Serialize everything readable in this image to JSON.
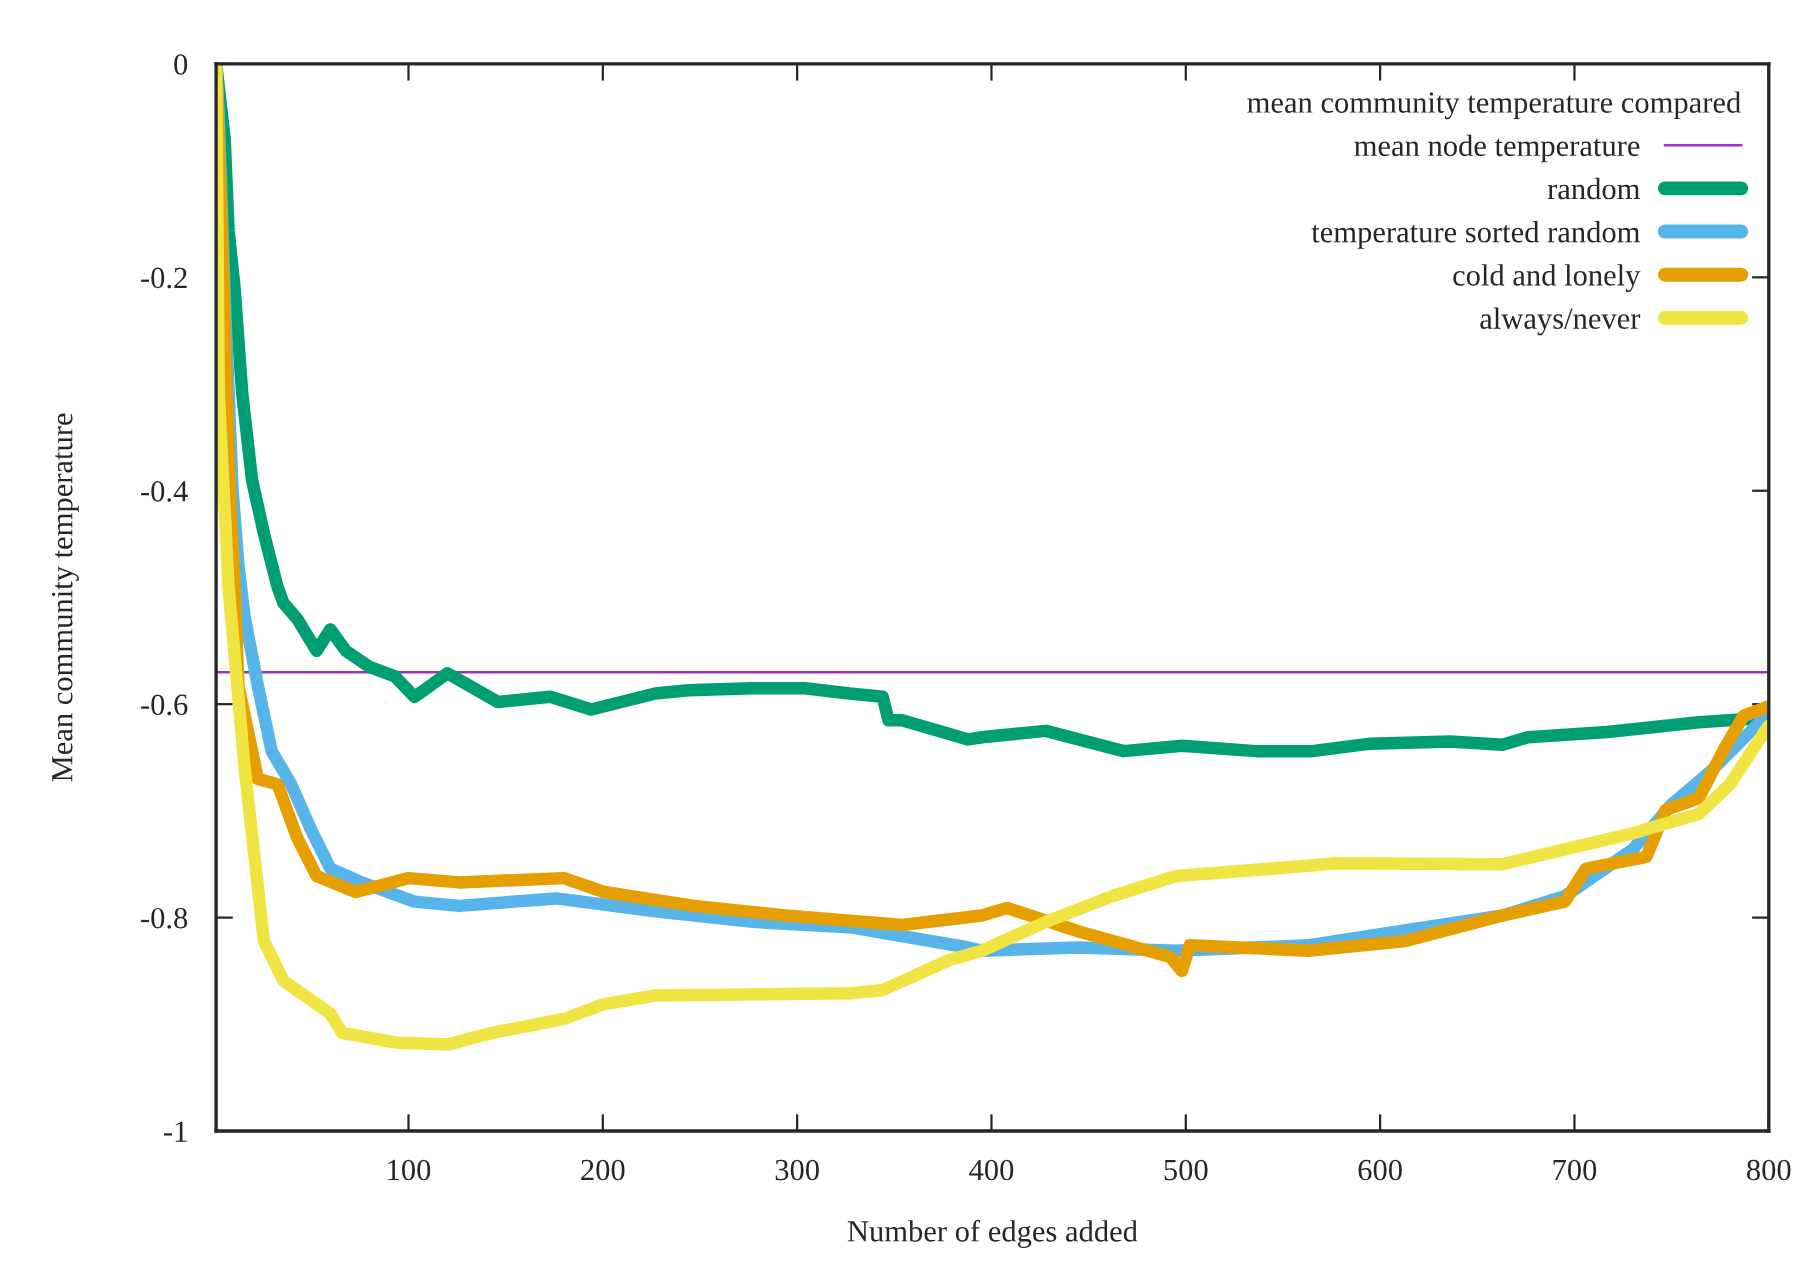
{
  "chart_data": {
    "type": "line",
    "xlabel": "Number of edges added",
    "ylabel": "Mean community temperature",
    "legend_title": "mean community temperature compared",
    "legend": "top right",
    "grid": false,
    "line_style": "solid",
    "marker": "none",
    "xlim": [
      1,
      800
    ],
    "xticks": [
      100,
      200,
      300,
      400,
      500,
      600,
      700,
      800
    ],
    "ylim": [
      -1,
      0
    ],
    "yticks": [
      -1,
      -0.8,
      -0.6,
      -0.4,
      -0.2,
      0
    ],
    "ref_lines": [
      {
        "axis": "y",
        "value": -0.57,
        "label": "mean node temperature",
        "color": "#9b30d0"
      }
    ],
    "series": [
      {
        "name": "random",
        "color": "#009e73",
        "x": [
          1,
          5.4,
          7.4,
          10.5,
          14.5,
          19.5,
          25.6,
          32.6,
          35.6,
          42.7,
          52.7,
          59.8,
          67.8,
          79.9,
          93,
          103,
          108,
          120,
          123,
          146,
          173,
          194,
          227,
          244,
          277,
          304,
          327,
          344,
          347,
          354,
          388,
          395,
          428,
          468,
          498,
          536,
          565,
          595,
          636,
          663,
          676,
          717,
          764,
          797,
          800
        ],
        "values": [
          0,
          -0.07,
          -0.156,
          -0.21,
          -0.31,
          -0.39,
          -0.44,
          -0.49,
          -0.505,
          -0.52,
          -0.55,
          -0.53,
          -0.55,
          -0.565,
          -0.574,
          -0.593,
          -0.587,
          -0.571,
          -0.574,
          -0.598,
          -0.593,
          -0.605,
          -0.59,
          -0.587,
          -0.585,
          -0.585,
          -0.59,
          -0.593,
          -0.615,
          -0.615,
          -0.633,
          -0.631,
          -0.625,
          -0.644,
          -0.639,
          -0.644,
          -0.644,
          -0.637,
          -0.635,
          -0.638,
          -0.631,
          -0.626,
          -0.617,
          -0.613,
          -0.604
        ]
      },
      {
        "name": "temperature sorted random",
        "color": "#56b4e9",
        "x": [
          1,
          2.4,
          5.4,
          9.5,
          12.5,
          15.5,
          22.5,
          29.6,
          39.6,
          49.7,
          59.8,
          75.9,
          103,
          126,
          176,
          227,
          277,
          327,
          388,
          395,
          445,
          495,
          563,
          595,
          663,
          695,
          730,
          750,
          770,
          797,
          800
        ],
        "values": [
          0,
          -0.05,
          -0.217,
          -0.4,
          -0.47,
          -0.516,
          -0.583,
          -0.644,
          -0.675,
          -0.717,
          -0.754,
          -0.767,
          -0.785,
          -0.789,
          -0.782,
          -0.794,
          -0.804,
          -0.809,
          -0.828,
          -0.831,
          -0.828,
          -0.831,
          -0.826,
          -0.817,
          -0.798,
          -0.78,
          -0.736,
          -0.694,
          -0.663,
          -0.614,
          -0.61
        ]
      },
      {
        "name": "cold and lonely",
        "color": "#e69f00",
        "x": [
          1,
          3.4,
          6.4,
          8.5,
          10.5,
          12.5,
          22.5,
          32.6,
          42.7,
          52.7,
          72.8,
          100,
          126,
          180,
          200.6,
          247,
          294,
          354,
          395,
          408,
          445,
          492,
          498,
          502,
          563,
          613,
          663,
          695,
          706,
          737,
          747,
          764,
          777,
          787,
          800
        ],
        "values": [
          0,
          -0.124,
          -0.31,
          -0.42,
          -0.49,
          -0.583,
          -0.67,
          -0.675,
          -0.725,
          -0.761,
          -0.776,
          -0.763,
          -0.767,
          -0.763,
          -0.776,
          -0.789,
          -0.798,
          -0.807,
          -0.798,
          -0.791,
          -0.813,
          -0.837,
          -0.85,
          -0.826,
          -0.831,
          -0.822,
          -0.798,
          -0.785,
          -0.754,
          -0.743,
          -0.699,
          -0.688,
          -0.642,
          -0.611,
          -0.602
        ]
      },
      {
        "name": "always/never",
        "color": "#f0e442",
        "x": [
          1,
          2.4,
          7.4,
          15.5,
          25.6,
          35.6,
          59.8,
          65.8,
          93,
          120,
          143,
          180,
          200.6,
          227,
          327,
          344,
          378,
          395,
          428,
          462,
          495,
          545,
          578,
          663,
          695,
          730,
          764,
          780,
          800
        ],
        "values": [
          0,
          -0.31,
          -0.49,
          -0.657,
          -0.822,
          -0.859,
          -0.89,
          -0.908,
          -0.917,
          -0.919,
          -0.908,
          -0.895,
          -0.881,
          -0.873,
          -0.871,
          -0.868,
          -0.84,
          -0.831,
          -0.804,
          -0.78,
          -0.761,
          -0.754,
          -0.749,
          -0.75,
          -0.736,
          -0.721,
          -0.703,
          -0.675,
          -0.62
        ]
      }
    ]
  }
}
